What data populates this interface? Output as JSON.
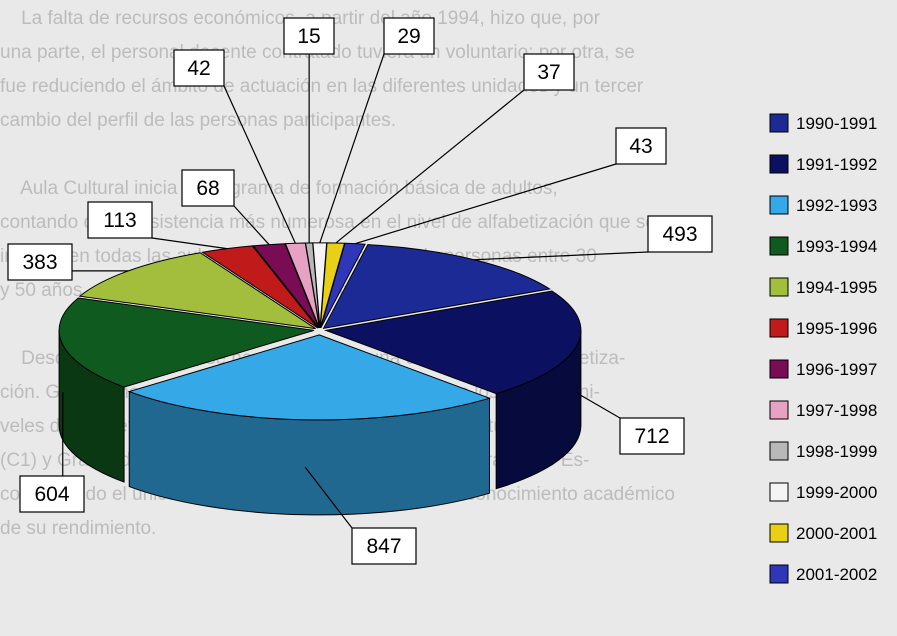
{
  "background_text": [
    "    La falta de recursos económicos, a partir del año 1994, hizo que, por",
    "una parte, el personal docente contratado tuviera un voluntario; por otra, se",
    "fue reduciendo el ámbito de actuación en las diferentes unidades y un tercer",
    "cambio del perfil de las personas participantes.",
    "",
    "    Aula Cultural inicia el programa de formación básica de adultos,",
    "contando con la asistencia más numerosa en el nivel de alfabetización que se",
    "imparte en todas las aulas, con una participación de personas entre 30",
    "y 50 años, donde mayoritariamente son mujeres.",
    "",
    "    Desde el curso 1998, se ha comprobado una disminución en alfabetiza-",
    "ción. Gradualmente los alumnos se han ido situando en los distintos ni-",
    "veles de alfabetización, neolectores y consolidación de estudios",
    "(C1) y Graduado (C2) concentrando la inscripción en el Graduado Es-",
    "colar, siendo el único objetivo inicial el de obtener un reconocimiento académico",
    "de su rendimiento.",
    ""
  ],
  "chart_data": {
    "type": "pie",
    "style": "3d-exploded",
    "title": "",
    "legend_position": "right",
    "slices": [
      {
        "label": "1990-1991",
        "value": 493,
        "color": "#1c2a96"
      },
      {
        "label": "1991-1992",
        "value": 712,
        "color": "#0b1060"
      },
      {
        "label": "1992-1993",
        "value": 847,
        "color": "#35a8e8"
      },
      {
        "label": "1993-1994",
        "value": 604,
        "color": "#0f5a1e"
      },
      {
        "label": "1994-1995",
        "value": 383,
        "color": "#a2be3c"
      },
      {
        "label": "1995-1996",
        "value": 113,
        "color": "#c01a1a"
      },
      {
        "label": "1996-1997",
        "value": 68,
        "color": "#7a0c55"
      },
      {
        "label": "1997-1998",
        "value": 42,
        "color": "#e7a1c3"
      },
      {
        "label": "1998-1999",
        "value": 15,
        "color": "#b8b8b8"
      },
      {
        "label": "1999-2000",
        "value": 29,
        "color": "#f4f4f4"
      },
      {
        "label": "2000-2001",
        "value": 37,
        "color": "#e8d016"
      },
      {
        "label": "2001-2002",
        "value": 43,
        "color": "#2f36b8"
      }
    ]
  }
}
